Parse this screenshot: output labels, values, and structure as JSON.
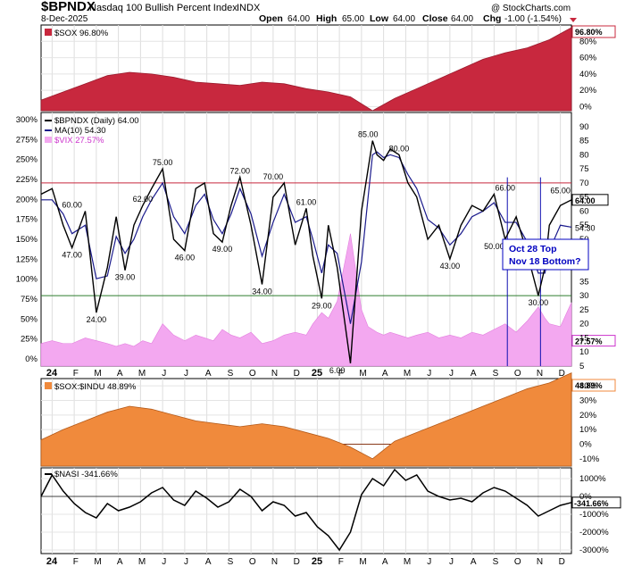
{
  "header": {
    "symbol": "$BPNDX",
    "name": "Nasdaq 100 Bullish Percent Index",
    "exchange": "INDX",
    "date": "8-Dec-2025",
    "open_label": "Open",
    "open": "64.00",
    "high_label": "High",
    "high": "65.00",
    "low_label": "Low",
    "low": "64.00",
    "close_label": "Close",
    "close": "64.00",
    "chg_label": "Chg",
    "chg": "-1.00 (-1.54%)",
    "watermark": "@ StockCharts.com"
  },
  "time_axis": {
    "months": [
      "24",
      "F",
      "M",
      "A",
      "M",
      "J",
      "J",
      "A",
      "S",
      "O",
      "N",
      "D",
      "25",
      "F",
      "M",
      "A",
      "M",
      "J",
      "J",
      "A",
      "S",
      "O",
      "N",
      "D"
    ],
    "year_labels": [
      "24",
      "25"
    ]
  },
  "chart_data": [
    {
      "type": "area",
      "legend": "$SOX 96.80%",
      "last_value_label": "96.80%",
      "y_ticks": [
        "80%",
        "60%",
        "40%",
        "20%",
        "0%"
      ],
      "ylim": [
        -5,
        100
      ],
      "color": "#c8283e",
      "x": [
        0,
        1,
        2,
        3,
        4,
        5,
        6,
        7,
        8,
        9,
        10,
        11,
        12,
        13,
        14,
        15,
        16,
        17,
        18,
        19,
        20,
        21,
        22,
        23,
        24
      ],
      "values": [
        8,
        18,
        28,
        38,
        42,
        40,
        36,
        30,
        28,
        26,
        30,
        28,
        22,
        18,
        12,
        -5,
        10,
        22,
        34,
        46,
        58,
        66,
        72,
        82,
        96.8
      ]
    },
    {
      "type": "line",
      "legend": [
        {
          "name": "$BPNDX (Daily) 64.00",
          "color": "#000000"
        },
        {
          "name": "MA(10) 54.30",
          "color": "#1a1a8c"
        },
        {
          "name": "$VIX 27.57%",
          "color": "#cc33cc"
        }
      ],
      "y_ticks_left": [
        "300%",
        "275%",
        "250%",
        "225%",
        "200%",
        "175%",
        "150%",
        "125%",
        "100%",
        "75%",
        "50%",
        "25%",
        "0%"
      ],
      "y_ticks_right": [
        "90",
        "85",
        "80",
        "75",
        "70",
        "65",
        "60",
        "55",
        "50",
        "45",
        "40",
        "35",
        "30",
        "25",
        "20",
        "15",
        "10",
        "5"
      ],
      "ylim_right": [
        5,
        95
      ],
      "reference_lines": [
        {
          "value": 70,
          "color": "#c8283e"
        },
        {
          "value": 30,
          "color": "#2f7d2f"
        }
      ],
      "last_value_labels": [
        "64.00",
        "54.30",
        "27.57%"
      ],
      "x": [
        0,
        0.5,
        1,
        1.4,
        2,
        2.5,
        3,
        3.4,
        3.8,
        4.2,
        4.6,
        5,
        5.5,
        6,
        6.5,
        7,
        7.4,
        7.8,
        8.2,
        8.6,
        9,
        9.5,
        10,
        10.5,
        11,
        11.5,
        12,
        12.3,
        12.7,
        13,
        13.4,
        14,
        14.5,
        14.8,
        15,
        15.2,
        15.5,
        15.8,
        16.2,
        16.6,
        17,
        17.5,
        18,
        18.5,
        19,
        19.5,
        20,
        20.5,
        21,
        21.5,
        22,
        22.5,
        22.8,
        23,
        23.5,
        24
      ],
      "bpndx": [
        66,
        68,
        55,
        47,
        60,
        24,
        40,
        58,
        39,
        55,
        62,
        68,
        75,
        50,
        46,
        68,
        70,
        52,
        49,
        62,
        72,
        55,
        34,
        65,
        70,
        48,
        61,
        44,
        29,
        55,
        40,
        6,
        60,
        75,
        85,
        80,
        78,
        82,
        80,
        70,
        65,
        50,
        55,
        43,
        55,
        62,
        60,
        66,
        50,
        58,
        45,
        30,
        40,
        55,
        62,
        64
      ],
      "ma10": [
        64,
        64,
        59,
        52,
        55,
        36,
        37,
        51,
        45,
        50,
        58,
        64,
        70,
        58,
        52,
        62,
        66,
        57,
        52,
        59,
        68,
        59,
        44,
        56,
        66,
        56,
        58,
        50,
        38,
        48,
        45,
        20,
        42,
        65,
        80,
        81,
        79,
        80,
        79,
        73,
        68,
        57,
        54,
        48,
        52,
        58,
        60,
        63,
        56,
        56,
        49,
        38,
        38,
        46,
        55,
        54.3
      ],
      "vix": [
        13,
        14,
        13,
        13,
        15,
        14,
        13,
        12,
        13,
        12,
        14,
        13,
        20,
        16,
        14,
        16,
        15,
        14,
        18,
        16,
        15,
        17,
        13,
        14,
        16,
        17,
        16,
        20,
        24,
        22,
        28,
        52,
        25,
        19,
        18,
        17,
        16,
        17,
        16,
        15,
        16,
        17,
        15,
        16,
        15,
        17,
        16,
        18,
        20,
        17,
        21,
        26,
        22,
        20,
        19,
        27.57
      ],
      "point_labels": [
        {
          "x": 1.4,
          "text": "60.00"
        },
        {
          "x": 1.4,
          "text": "47.00"
        },
        {
          "x": 2.5,
          "text": "24.00"
        },
        {
          "x": 3.8,
          "text": "39.00"
        },
        {
          "x": 4.6,
          "text": "62.00"
        },
        {
          "x": 5.5,
          "text": "75.00"
        },
        {
          "x": 6.5,
          "text": "46.00"
        },
        {
          "x": 8.2,
          "text": "49.00"
        },
        {
          "x": 9,
          "text": "72.00"
        },
        {
          "x": 10,
          "text": "34.00"
        },
        {
          "x": 10.5,
          "text": "70.00"
        },
        {
          "x": 12,
          "text": "61.00"
        },
        {
          "x": 12.7,
          "text": "29.00"
        },
        {
          "x": 14.8,
          "text": "85.00"
        },
        {
          "x": 16.2,
          "text": "80.00"
        },
        {
          "x": 18.5,
          "text": "43.00"
        },
        {
          "x": 20.5,
          "text": "50.00"
        },
        {
          "x": 21,
          "text": "66.00"
        },
        {
          "x": 22.5,
          "text": "30.00"
        },
        {
          "x": 23.5,
          "text": "65.00"
        },
        {
          "x": 13.4,
          "text": "6.00"
        }
      ],
      "annotation": {
        "line1": "Oct 28 Top",
        "line2": "Nov 18 Bottom?"
      }
    },
    {
      "type": "area",
      "legend": "$SOX:$INDU 48.89%",
      "last_value_label": "48.89%",
      "y_ticks": [
        "40%",
        "30%",
        "20%",
        "10%",
        "0%",
        "-10%"
      ],
      "ylim": [
        -15,
        45
      ],
      "color": "#f08a3c",
      "x": [
        0,
        1,
        2,
        3,
        4,
        5,
        6,
        7,
        8,
        9,
        10,
        11,
        12,
        13,
        14,
        15,
        16,
        17,
        18,
        19,
        20,
        21,
        22,
        23,
        24
      ],
      "values": [
        3,
        10,
        16,
        22,
        26,
        24,
        20,
        16,
        14,
        12,
        14,
        12,
        8,
        4,
        -2,
        -10,
        2,
        8,
        14,
        20,
        26,
        32,
        38,
        42,
        48.89
      ]
    },
    {
      "type": "line",
      "legend": "$NASI -341.66%",
      "last_value_label": "-341.66%",
      "y_ticks": [
        "1000%",
        "0%",
        "-1000%",
        "-2000%",
        "-3000%"
      ],
      "ylim": [
        -3200,
        1600
      ],
      "color": "#000000",
      "x": [
        0,
        0.5,
        1,
        1.5,
        2,
        2.5,
        3,
        3.5,
        4,
        4.5,
        5,
        5.5,
        6,
        6.5,
        7,
        7.5,
        8,
        8.5,
        9,
        9.5,
        10,
        10.5,
        11,
        11.5,
        12,
        12.5,
        13,
        13.5,
        14,
        14.5,
        15,
        15.5,
        16,
        16.5,
        17,
        17.5,
        18,
        18.5,
        19,
        19.5,
        20,
        20.5,
        21,
        21.5,
        22,
        22.5,
        23,
        23.5,
        24
      ],
      "values": [
        0,
        1200,
        300,
        -400,
        -900,
        -1200,
        -400,
        -800,
        -600,
        -300,
        200,
        500,
        -200,
        -500,
        300,
        -100,
        -600,
        -300,
        400,
        0,
        -800,
        -300,
        -500,
        -1100,
        -900,
        -1700,
        -2200,
        -3000,
        -2000,
        100,
        1000,
        600,
        1500,
        900,
        1200,
        300,
        0,
        -200,
        -100,
        -300,
        200,
        500,
        300,
        -100,
        -500,
        -1100,
        -800,
        -500,
        -341.66
      ]
    }
  ]
}
